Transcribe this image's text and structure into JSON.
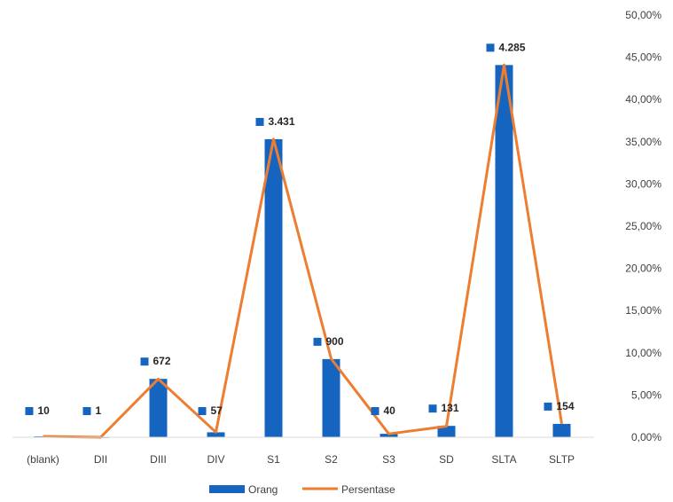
{
  "colors": {
    "bar": "#1565C0",
    "line": "#ED7D31",
    "axis": "#D9D9D9"
  },
  "chart_data": {
    "type": "bar",
    "categories": [
      "(blank)",
      "DII",
      "DIII",
      "DIV",
      "S1",
      "S2",
      "S3",
      "SD",
      "SLTA",
      "SLTP"
    ],
    "series": [
      {
        "name": "Orang",
        "type": "bar",
        "axis": "primary",
        "values": [
          10,
          1,
          672,
          57,
          3431,
          900,
          40,
          131,
          4285,
          154
        ],
        "data_labels": [
          "10",
          "1",
          "672",
          "57",
          "3.431",
          "900",
          "40",
          "131",
          "4.285",
          "154"
        ]
      },
      {
        "name": "Persentase",
        "type": "line",
        "axis": "secondary",
        "values": [
          0.1,
          0.0,
          6.9,
          0.6,
          35.3,
          9.3,
          0.4,
          1.3,
          44.1,
          1.6
        ]
      }
    ],
    "primary_ylim": [
      0,
      4860
    ],
    "secondary_ylim": [
      0,
      50
    ],
    "secondary_ticks": [
      "0,00%",
      "5,00%",
      "10,00%",
      "15,00%",
      "20,00%",
      "25,00%",
      "30,00%",
      "35,00%",
      "40,00%",
      "45,00%",
      "50,00%"
    ],
    "legend": {
      "position": "bottom",
      "entries": [
        "Orang",
        "Persentase"
      ]
    },
    "grid": false
  }
}
